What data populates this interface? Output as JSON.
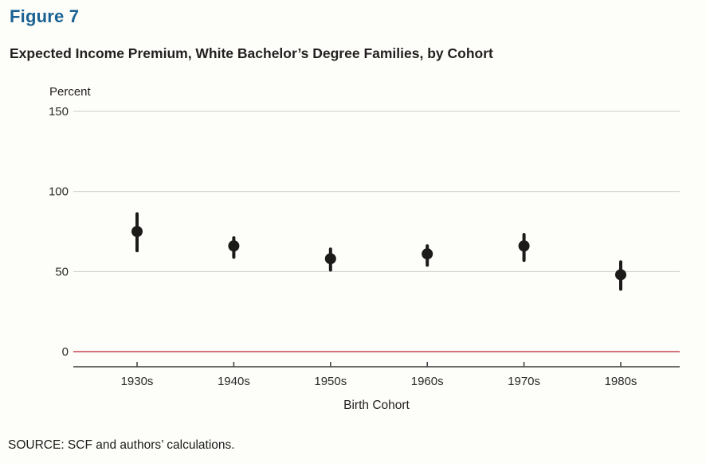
{
  "figure": {
    "label": "Figure 7",
    "title": "Expected Income Premium, White Bachelor’s Degree Families, by Cohort",
    "source": "SOURCE: SCF and authors’ calculations."
  },
  "colors": {
    "figure_label": "#1a6294",
    "heading_text": "#231f20",
    "tick_text": "#2a2a2a",
    "gridline": "#cccccc",
    "zero_line": "#d4737c",
    "axis_line": "#3d3d3d",
    "point": "#1d1a1a",
    "background": "#fdfdf9"
  },
  "chart_data": {
    "type": "scatter",
    "subtype": "point-range",
    "title": "Expected Income Premium, White Bachelor’s Degree Families, by Cohort",
    "xlabel": "Birth Cohort",
    "ylabel": "Percent",
    "ylim": [
      0,
      150
    ],
    "yticks": [
      0,
      50,
      100,
      150
    ],
    "grid": "horizontal-only",
    "legend": "none",
    "zero_line_highlighted": true,
    "categories": [
      "1930s",
      "1940s",
      "1950s",
      "1960s",
      "1970s",
      "1980s"
    ],
    "series": [
      {
        "name": "Expected income premium (percent)",
        "values": [
          75,
          66,
          58,
          61,
          66,
          48
        ],
        "ci_low": [
          63,
          59,
          51,
          54,
          57,
          39
        ],
        "ci_high": [
          86,
          71,
          64,
          66,
          73,
          56
        ]
      }
    ]
  }
}
